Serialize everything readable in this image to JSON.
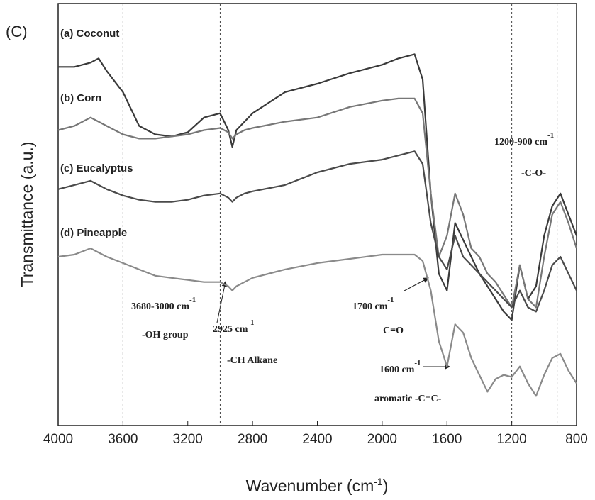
{
  "chart_data": {
    "type": "line",
    "panel_label": "(C)",
    "x_label": {
      "text": "Wavenumber (cm",
      "sup": "-1",
      "tail": ")"
    },
    "y_label": "Transmittance (a.u.)",
    "xlim": [
      4000,
      800
    ],
    "ylim": [
      0,
      100
    ],
    "xticks": [
      4000,
      3600,
      3200,
      2800,
      2400,
      2000,
      1600,
      1200,
      800
    ],
    "reference_lines": [
      3600,
      3000,
      1200,
      920
    ],
    "x": [
      4000,
      3900,
      3800,
      3750,
      3700,
      3600,
      3500,
      3400,
      3300,
      3200,
      3100,
      3000,
      2950,
      2925,
      2900,
      2850,
      2800,
      2600,
      2400,
      2200,
      2000,
      1900,
      1800,
      1750,
      1700,
      1650,
      1600,
      1550,
      1500,
      1450,
      1400,
      1350,
      1300,
      1250,
      1200,
      1150,
      1100,
      1050,
      1000,
      950,
      900,
      850,
      800
    ],
    "series": [
      {
        "name": "(a) Coconut",
        "color": "#3a3a3a",
        "values": [
          85,
          85,
          86,
          87,
          84,
          79,
          71,
          69,
          68.5,
          69.5,
          73,
          74,
          70,
          66,
          70,
          72,
          74,
          79,
          81,
          83.5,
          85.5,
          87,
          88,
          82,
          55,
          36,
          32,
          48,
          44,
          40,
          36,
          33,
          30,
          27,
          25,
          38,
          30,
          33,
          45,
          52,
          55,
          50,
          45
        ]
      },
      {
        "name": "(b) Corn",
        "color": "#777777",
        "values": [
          70,
          71,
          73,
          72,
          71,
          69,
          68,
          68,
          68.5,
          69,
          70,
          70.5,
          69.5,
          68,
          69,
          70,
          70.5,
          72,
          73,
          75.5,
          77,
          77.5,
          77.5,
          74,
          55,
          40,
          45,
          55,
          50,
          42,
          40,
          36,
          34,
          31,
          28,
          38,
          30,
          28,
          40,
          50,
          53,
          48,
          42
        ]
      },
      {
        "name": "(c) Eucalyptus",
        "color": "#4a4a4a",
        "values": [
          56,
          57,
          58,
          57,
          56,
          54.5,
          53.5,
          53,
          53,
          53.5,
          54.5,
          55,
          54,
          53,
          54,
          55,
          55.5,
          57,
          60,
          62,
          63,
          64,
          65,
          62,
          48,
          40,
          37,
          45,
          40,
          38,
          36,
          34,
          32,
          30,
          28,
          32,
          28,
          27,
          32,
          38,
          40,
          36,
          32
        ]
      },
      {
        "name": "(d) Pineapple",
        "color": "#8a8a8a",
        "values": [
          40,
          40.5,
          42,
          41,
          40,
          38.5,
          37,
          35.5,
          35,
          34.5,
          34,
          34,
          33,
          32,
          33,
          34,
          35,
          37,
          38.5,
          39.5,
          40.5,
          40.5,
          40.5,
          39,
          32,
          20,
          14,
          24,
          22,
          16,
          12,
          8,
          11,
          12,
          11.5,
          14,
          10,
          7,
          12,
          16,
          17,
          13,
          10
        ]
      }
    ],
    "annotations": [
      {
        "text": "3680-3000 cm",
        "sup": "-1"
      },
      {
        "text": "-OH group"
      },
      {
        "text": "2925 cm",
        "sup": "-1"
      },
      {
        "text": "-CH Alkane"
      },
      {
        "text": "1700 cm",
        "sup": "-1"
      },
      {
        "text": "C=O"
      },
      {
        "text": "1600 cm",
        "sup": "-1"
      },
      {
        "text": "aromatic -C=C-"
      },
      {
        "text": "1200-900 cm",
        "sup": "-1"
      },
      {
        "text": "-C-O-"
      }
    ]
  }
}
